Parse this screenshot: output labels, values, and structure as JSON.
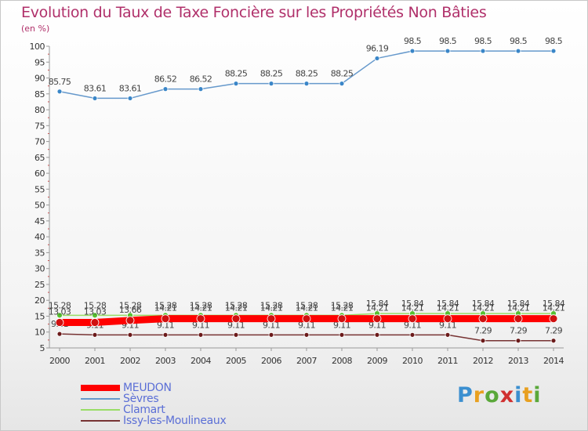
{
  "header": {
    "title": "Evolution du Taux de Taxe Foncière sur les Propriétés Non Bâties",
    "unit": "(en %)"
  },
  "brand": {
    "letters": [
      "P",
      "r",
      "o",
      "x",
      "i",
      "t",
      "i"
    ],
    "colors": [
      "#3b8fd0",
      "#e8a020",
      "#5aa83a",
      "#d03030",
      "#3b8fd0",
      "#e8a020",
      "#5aa83a"
    ]
  },
  "chart_data": {
    "type": "line",
    "title": "Evolution du Taux de Taxe Foncière sur les Propriétés Non Bâties",
    "ylabel": "(en %)",
    "xlabel": "",
    "ylim": [
      5,
      100
    ],
    "yticks": [
      5,
      10,
      15,
      20,
      25,
      30,
      35,
      40,
      45,
      50,
      55,
      60,
      65,
      70,
      75,
      80,
      85,
      90,
      95,
      100
    ],
    "grid": false,
    "legend_position": "bottom-left",
    "x": [
      "2000",
      "2001",
      "2002",
      "2003",
      "2004",
      "2005",
      "2006",
      "2007",
      "2008",
      "2009",
      "2010",
      "2011",
      "2012",
      "2013",
      "2014"
    ],
    "series": [
      {
        "name": "MEUDON",
        "color": "#ff0000",
        "marker": "#d01010",
        "values": [
          13.03,
          13.03,
          13.66,
          14.21,
          14.21,
          14.21,
          14.21,
          14.21,
          14.21,
          14.21,
          14.21,
          14.21,
          14.21,
          14.21,
          14.21
        ],
        "labels": [
          "13.03",
          "13.03",
          "13.66",
          "14.21",
          "14.21",
          "14.21",
          "14.21",
          "14.21",
          "14.21",
          "14.21",
          "14.21",
          "14.21",
          "14.21",
          "14.21",
          "14.21"
        ]
      },
      {
        "name": "Sèvres",
        "color": "#6699cc",
        "marker": "#3a86c8",
        "values": [
          85.75,
          83.61,
          83.61,
          86.52,
          86.52,
          88.25,
          88.25,
          88.25,
          88.25,
          96.19,
          98.5,
          98.5,
          98.5,
          98.5,
          98.5
        ],
        "labels": [
          "85.75",
          "83.61",
          "83.61",
          "86.52",
          "86.52",
          "88.25",
          "88.25",
          "88.25",
          "88.25",
          "96.19",
          "98.5",
          "98.5",
          "98.5",
          "98.5",
          "98.5"
        ]
      },
      {
        "name": "Clamart",
        "color": "#99dd66",
        "marker": "#55c030",
        "values": [
          15.28,
          15.28,
          15.28,
          15.28,
          15.28,
          15.28,
          15.28,
          15.28,
          15.28,
          15.84,
          15.84,
          15.84,
          15.84,
          15.84,
          15.84
        ],
        "labels": [
          "15.28",
          "15.28",
          "15.28",
          "15.28",
          "15.28",
          "15.28",
          "15.28",
          "15.28",
          "15.28",
          "15.84",
          "15.84",
          "15.84",
          "15.84",
          "15.84",
          "15.84"
        ]
      },
      {
        "name": "Issy-les-Moulineaux",
        "color": "#773333",
        "marker": "#6b1a1a",
        "values": [
          9.41,
          9.11,
          9.11,
          9.11,
          9.11,
          9.11,
          9.11,
          9.11,
          9.11,
          9.11,
          9.11,
          9.11,
          7.29,
          7.29,
          7.29
        ],
        "labels": [
          "9.41",
          "9.11",
          "9.11",
          "9.11",
          "9.11",
          "9.11",
          "9.11",
          "9.11",
          "9.11",
          "9.11",
          "9.11",
          "9.11",
          "7.29",
          "7.29",
          "7.29"
        ]
      }
    ]
  }
}
